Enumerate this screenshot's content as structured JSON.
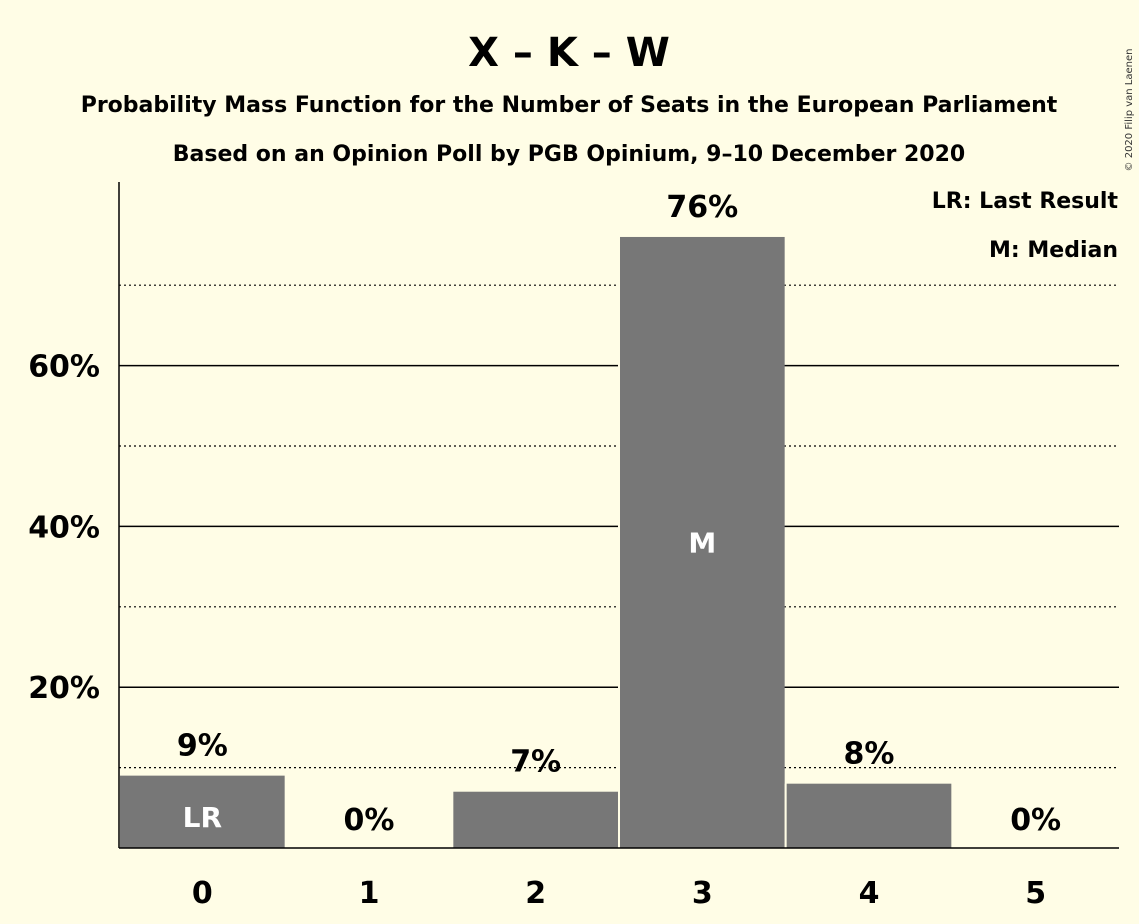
{
  "chart_data": {
    "type": "bar",
    "title": "X – K – W",
    "subtitle": "Probability Mass Function for the Number of Seats in the European Parliament",
    "subtitle2": "Based on an Opinion Poll by PGB Opinium, 9–10 December 2020",
    "categories": [
      "0",
      "1",
      "2",
      "3",
      "4",
      "5"
    ],
    "values": [
      9,
      0,
      7,
      76,
      8,
      0
    ],
    "value_labels": [
      "9%",
      "0%",
      "7%",
      "76%",
      "8%",
      "0%"
    ],
    "bar_markers": [
      "LR",
      "",
      "",
      "M",
      "",
      ""
    ],
    "ylim": [
      0,
      83
    ],
    "yticks": [
      20,
      40,
      60
    ],
    "ytick_labels": [
      "20%",
      "40%",
      "60%"
    ],
    "minor_gridlines": [
      10,
      30,
      50,
      70
    ],
    "legend": [
      "LR: Last Result",
      "M: Median"
    ],
    "legend_position": "top-right",
    "bar_color": "#777777",
    "background_color": "#FFFDE6",
    "copyright": "© 2020 Filip van Laenen"
  }
}
